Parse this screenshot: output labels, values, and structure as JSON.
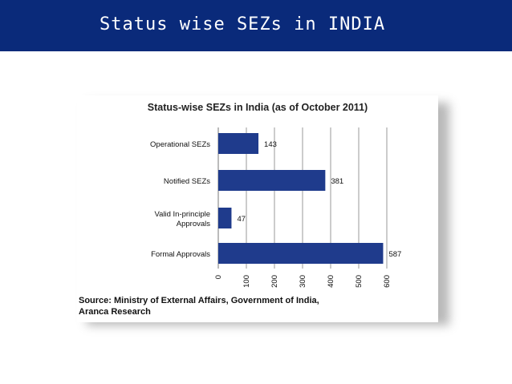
{
  "header": {
    "title": "Status wise SEZs in INDIA"
  },
  "colors": {
    "header_bg": "#0a2a7a",
    "bar": "#1f3b8c"
  },
  "chart_data": {
    "type": "bar",
    "orientation": "horizontal",
    "title": "Status-wise SEZs in India (as of October 2011)",
    "categories": [
      "Operational SEZs",
      "Notified SEZs",
      "Valid In-principle Approvals",
      "Formal Approvals"
    ],
    "category_lines": [
      [
        "Operational SEZs"
      ],
      [
        "Notified SEZs"
      ],
      [
        "Valid In-principle",
        "Approvals"
      ],
      [
        "Formal Approvals"
      ]
    ],
    "values": [
      143,
      381,
      47,
      587
    ],
    "xlim": [
      0,
      600
    ],
    "xticks": [
      0,
      100,
      200,
      300,
      400,
      500,
      600
    ],
    "grid": true,
    "source_lines": [
      "Source: Ministry of External Affairs, Government of India,",
      "Aranca Research"
    ]
  }
}
